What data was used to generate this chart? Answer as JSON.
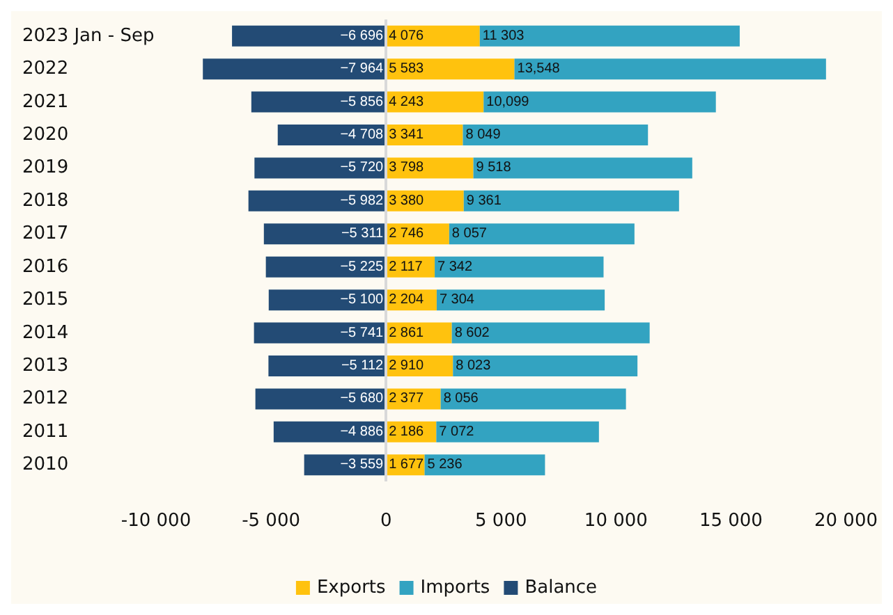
{
  "chart_data": {
    "type": "bar",
    "orientation": "horizontal",
    "stacked": true,
    "legend": "bottom",
    "grid": false,
    "categories": [
      "2023 Jan - Sep",
      "2022",
      "2021",
      "2020",
      "2019",
      "2018",
      "2017",
      "2016",
      "2015",
      "2014",
      "2013",
      "2012",
      "2011",
      "2010"
    ],
    "xlim": [
      -10000,
      20000
    ],
    "ref_lines": [
      {
        "axis": "x",
        "value": 0,
        "color": "#d9d9d9"
      }
    ],
    "xticks": [
      {
        "value": -10000,
        "label": "-10 000"
      },
      {
        "value": -5000,
        "label": "-5 000"
      },
      0,
      {
        "value": 5000,
        "label": "5 000"
      },
      {
        "value": 10000,
        "label": "10 000"
      },
      {
        "value": 15000,
        "label": "15 000"
      },
      {
        "value": 20000,
        "label": "20 000"
      }
    ],
    "series": [
      {
        "name": "Exports",
        "color": "#ffc20e",
        "values": [
          4076,
          5583,
          4243,
          3341,
          3798,
          3380,
          2746,
          2117,
          2204,
          2861,
          2910,
          2377,
          2186,
          1677
        ],
        "value_labels": [
          "4 076",
          "5 583",
          "4 243",
          "3 341",
          "3 798",
          "3 380",
          "2 746",
          "2 117",
          "2 204",
          "2 861",
          "2 910",
          "2 377",
          "2 186",
          "1 677"
        ]
      },
      {
        "name": "Imports",
        "color": "#33a3c1",
        "values": [
          11303,
          13548,
          10099,
          8049,
          9518,
          9361,
          8057,
          7342,
          7304,
          8602,
          8023,
          8056,
          7072,
          5236
        ],
        "value_labels": [
          "11 303",
          "13,548",
          "10,099",
          "8 049",
          "9 518",
          "9 361",
          "8 057",
          "7 342",
          "7 304",
          "8 602",
          "8 023",
          "8 056",
          "7 072",
          "5 236"
        ]
      },
      {
        "name": "Balance",
        "color": "#234b75",
        "values": [
          -6696,
          -7964,
          -5856,
          -4708,
          -5720,
          -5982,
          -5311,
          -5225,
          -5100,
          -5741,
          -5112,
          -5680,
          -4886,
          -3559
        ],
        "value_labels": [
          "−6 696",
          "−7 964",
          "−5 856",
          "−4 708",
          "−5 720",
          "−5 982",
          "−5 311",
          "−5 225",
          "−5 100",
          "−5 741",
          "−5 112",
          "−5 680",
          "−4 886",
          "−3 559"
        ]
      }
    ]
  }
}
